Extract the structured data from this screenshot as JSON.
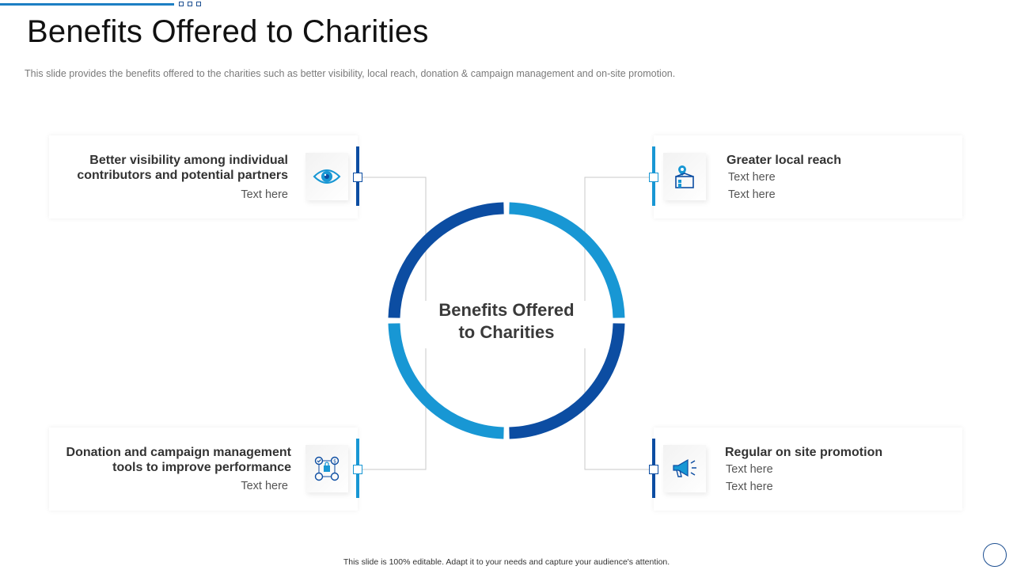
{
  "title": "Benefits Offered to Charities",
  "subtitle": "This slide provides  the benefits offered to the charities such as better visibility, local reach, donation & campaign management  and on-site promotion.",
  "center": {
    "line1": "Benefits Offered",
    "line2": "to Charities"
  },
  "cards": {
    "visibility": {
      "heading1": "Better visibility  among individual",
      "heading2": "contributors and potential partners",
      "text1": "Text here",
      "icon": "eye-icon"
    },
    "reach": {
      "heading": "Greater local reach",
      "text1": "Text here",
      "text2": "Text here",
      "icon": "location-building-icon"
    },
    "donation": {
      "heading1": "Donation and campaign management",
      "heading2": "tools to improve performance",
      "text1": "Text here",
      "icon": "management-tools-icon"
    },
    "promotion": {
      "heading": "Regular on site promotion",
      "text1": "Text here",
      "text2": "Text here",
      "icon": "megaphone-icon"
    }
  },
  "colors": {
    "dark_blue": "#0c4da2",
    "light_blue": "#1897d4",
    "line_gray": "#c8c8c8"
  },
  "footer": "This slide is 100% editable. Adapt it to your needs and capture your audience's attention."
}
